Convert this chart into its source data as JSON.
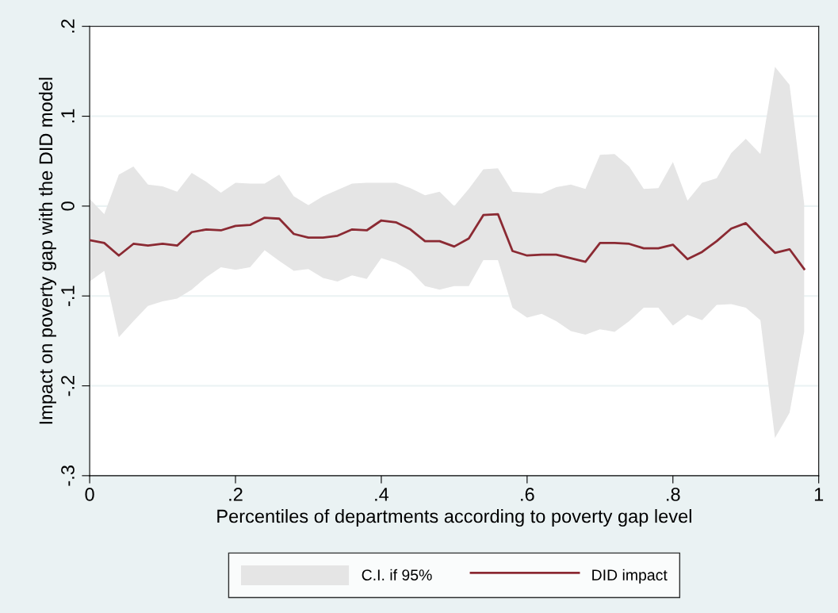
{
  "chart_data": {
    "type": "line",
    "xlabel": "Percentiles of departments according to poverty gap level",
    "ylabel": "Impact on poverty gap with the DID model",
    "annotations": [
      "C.I. if 95%"
    ],
    "x": [
      0,
      0.02,
      0.04,
      0.06,
      0.08,
      0.1,
      0.12,
      0.14,
      0.16,
      0.18,
      0.2,
      0.22,
      0.24,
      0.26,
      0.28,
      0.3,
      0.32,
      0.34,
      0.36,
      0.38,
      0.4,
      0.42,
      0.44,
      0.46,
      0.48,
      0.5,
      0.52,
      0.54,
      0.56,
      0.58,
      0.6,
      0.62,
      0.64,
      0.66,
      0.68,
      0.7,
      0.72,
      0.74,
      0.76,
      0.78,
      0.8,
      0.82,
      0.84,
      0.86,
      0.88,
      0.9,
      0.92,
      0.94,
      0.96,
      0.98
    ],
    "series": [
      {
        "name": "DID impact",
        "color": "#8b2a33",
        "values": [
          -0.038,
          -0.041,
          -0.055,
          -0.042,
          -0.044,
          -0.042,
          -0.044,
          -0.029,
          -0.026,
          -0.027,
          -0.022,
          -0.021,
          -0.013,
          -0.014,
          -0.031,
          -0.035,
          -0.035,
          -0.033,
          -0.026,
          -0.027,
          -0.016,
          -0.018,
          -0.026,
          -0.039,
          -0.039,
          -0.045,
          -0.036,
          -0.01,
          -0.009,
          -0.05,
          -0.055,
          -0.054,
          -0.054,
          -0.058,
          -0.062,
          -0.041,
          -0.041,
          -0.042,
          -0.047,
          -0.047,
          -0.043,
          -0.059,
          -0.051,
          -0.039,
          -0.025,
          -0.019,
          -0.036,
          -0.052,
          -0.048,
          -0.07
        ],
        "lower": [
          -0.084,
          -0.072,
          -0.146,
          -0.128,
          -0.111,
          -0.106,
          -0.103,
          -0.093,
          -0.079,
          -0.068,
          -0.071,
          -0.068,
          -0.049,
          -0.061,
          -0.072,
          -0.07,
          -0.08,
          -0.084,
          -0.077,
          -0.081,
          -0.058,
          -0.063,
          -0.072,
          -0.089,
          -0.093,
          -0.089,
          -0.089,
          -0.06,
          -0.06,
          -0.113,
          -0.124,
          -0.12,
          -0.128,
          -0.139,
          -0.143,
          -0.137,
          -0.14,
          -0.128,
          -0.113,
          -0.113,
          -0.133,
          -0.121,
          -0.127,
          -0.11,
          -0.109,
          -0.113,
          -0.127,
          -0.258,
          -0.23,
          -0.14
        ],
        "upper": [
          0.008,
          -0.009,
          0.035,
          0.044,
          0.024,
          0.022,
          0.016,
          0.037,
          0.027,
          0.015,
          0.026,
          0.025,
          0.025,
          0.035,
          0.011,
          0.001,
          0.011,
          0.018,
          0.025,
          0.026,
          0.026,
          0.026,
          0.02,
          0.012,
          0.016,
          0.0,
          0.019,
          0.041,
          0.042,
          0.016,
          0.015,
          0.014,
          0.021,
          0.024,
          0.019,
          0.057,
          0.058,
          0.044,
          0.019,
          0.02,
          0.049,
          0.006,
          0.026,
          0.031,
          0.059,
          0.075,
          0.058,
          0.155,
          0.135,
          0.003
        ]
      }
    ],
    "xlim": [
      0,
      1
    ],
    "xticks": [
      0,
      {
        "value": 0.2,
        "label": ".2"
      },
      {
        "value": 0.4,
        "label": ".4"
      },
      {
        "value": 0.6,
        "label": ".6"
      },
      {
        "value": 0.8,
        "label": ".8"
      },
      1
    ],
    "ylim": [
      -0.3,
      0.2
    ],
    "yticks": [
      {
        "value": -0.3,
        "label": "-.3"
      },
      {
        "value": -0.2,
        "label": "-.2"
      },
      {
        "value": -0.1,
        "label": "-.1"
      },
      0,
      {
        "value": 0.1,
        "label": ".1"
      },
      {
        "value": 0.2,
        "label": ".2"
      }
    ],
    "grid": "y",
    "legend": "bottom",
    "marker": "none",
    "line_style": "solid"
  }
}
